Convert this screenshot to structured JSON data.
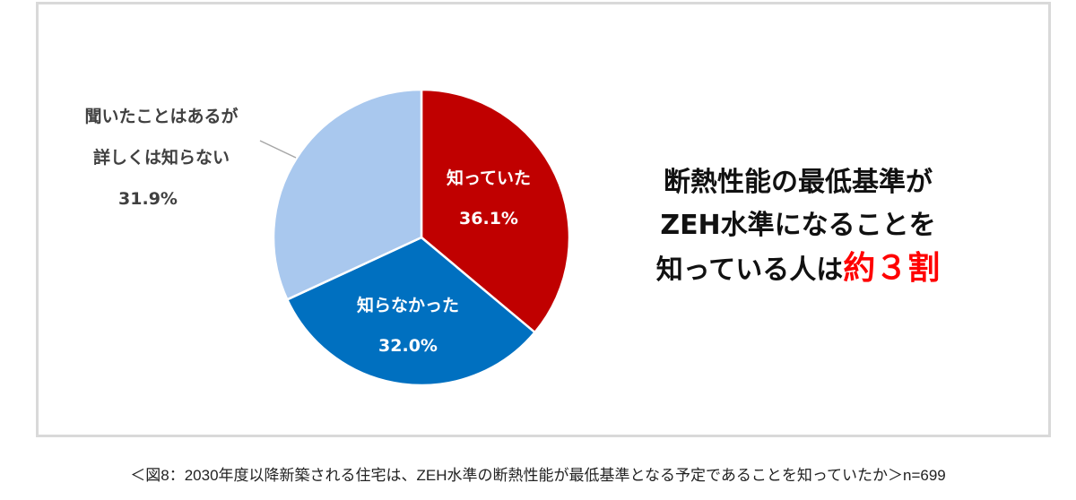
{
  "chart_data": {
    "type": "pie",
    "slices": [
      {
        "label": "知っていた",
        "value": 36.1,
        "value_label": "36.1%",
        "color": "#c00000"
      },
      {
        "label": "知らなかった",
        "value": 32.0,
        "value_label": "32.0%",
        "color": "#0070c0"
      },
      {
        "label_line1": "聞いたことはあるが",
        "label_line2": "詳しくは知らない",
        "value": 31.9,
        "value_label": "31.9%",
        "color": "#a9c8ee"
      }
    ],
    "start_angle": "top",
    "direction": "clockwise"
  },
  "headline": {
    "line1": "断熱性能の最低基準が",
    "line2": "ZEH水準になることを",
    "line3_prefix": "知っている人は",
    "line3_emphasis": "約３割",
    "emphasis_color": "#ff0000"
  },
  "caption": "＜図8：2030年度以降新築される住宅は、ZEH水準の断熱性能が最低基準となる予定であることを知っていたか＞n=699"
}
